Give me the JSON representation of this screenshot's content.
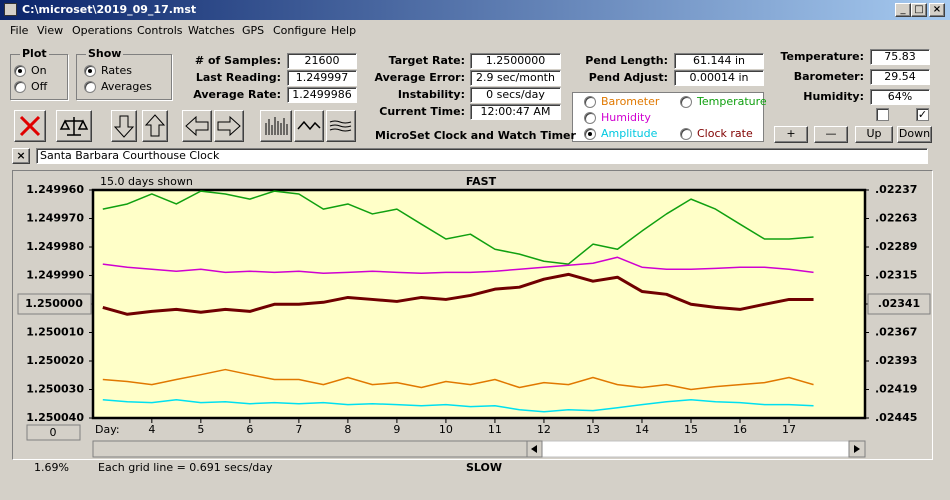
{
  "window": {
    "title": "C:\\microset\\2019_09_17.mst",
    "menu": [
      "File",
      "View",
      "Operations",
      "Controls",
      "Watches",
      "GPS",
      "Configure",
      "Help"
    ]
  },
  "plot_group": {
    "title": "Plot",
    "options": [
      {
        "label": "On",
        "checked": true
      },
      {
        "label": "Off",
        "checked": false
      }
    ]
  },
  "show_group": {
    "title": "Show",
    "options": [
      {
        "label": "Rates",
        "checked": true
      },
      {
        "label": "Averages",
        "checked": false
      }
    ]
  },
  "fields_left": [
    {
      "label": "# of Samples:",
      "value": "21600"
    },
    {
      "label": "Last Reading:",
      "value": "1.249997"
    },
    {
      "label": "Average Rate:",
      "value": "1.2499986"
    }
  ],
  "fields_mid": [
    {
      "label": "Target Rate:",
      "value": "1.2500000"
    },
    {
      "label": "Average Error:",
      "value": "2.9 sec/month"
    },
    {
      "label": "Instability:",
      "value": "0 secs/day"
    },
    {
      "label": "Current Time:",
      "value": "12:00:47 AM"
    }
  ],
  "app_title": "MicroSet Clock and Watch Timer",
  "fields_pend": [
    {
      "label": "Pend Length:",
      "value": "61.144 in"
    },
    {
      "label": "Pend Adjust:",
      "value": "0.00014 in"
    }
  ],
  "plot_options": [
    {
      "label": "Barometer",
      "color": "#e07800",
      "checked": false
    },
    {
      "label": "Temperature",
      "color": "#10a010",
      "checked": false
    },
    {
      "label": "Humidity",
      "color": "#d000d0",
      "checked": false
    },
    {
      "label": "Amplitude",
      "color": "#00c8e0",
      "checked": true
    },
    {
      "label": "Clock rate",
      "color": "#800000",
      "checked": false
    }
  ],
  "fields_env": [
    {
      "label": "Temperature:",
      "value": "75.83"
    },
    {
      "label": "Barometer:",
      "value": "29.54"
    },
    {
      "label": "Humidity:",
      "value": "64%"
    }
  ],
  "checkboxes": [
    false,
    true
  ],
  "buttons": [
    "+",
    "—",
    "Up",
    "Down"
  ],
  "clock_name": "Santa Barbara Courthouse Clock",
  "zero_button": "0",
  "percent": "1.69%",
  "chart_data": {
    "type": "line",
    "days_shown": "15.0 days shown",
    "top_label": "FAST",
    "bottom_label": "SLOW",
    "x_label": "Day:",
    "footer": "Each grid line = 0.691 secs/day",
    "x": [
      3,
      3.5,
      4,
      4.5,
      5,
      5.5,
      6,
      6.5,
      7,
      7.5,
      8,
      8.5,
      9,
      9.5,
      10,
      10.5,
      11,
      11.5,
      12,
      12.5,
      13,
      13.5,
      14,
      14.5,
      15,
      15.5,
      16,
      16.5,
      17,
      17.5
    ],
    "xlim": [
      2.8,
      18.55
    ],
    "xticks": [
      4,
      5,
      6,
      7,
      8,
      9,
      10,
      11,
      12,
      13,
      14,
      15,
      16,
      17
    ],
    "ylim": [
      1.24996,
      1.25004
    ],
    "yticks": [
      {
        "value": 1.24996,
        "label": "1.249960"
      },
      {
        "value": 1.24997,
        "label": "1.249970"
      },
      {
        "value": 1.24998,
        "label": "1.249980"
      },
      {
        "value": 1.24999,
        "label": "1.249990"
      },
      {
        "value": 1.25,
        "label": "1.250000"
      },
      {
        "value": 1.25001,
        "label": "1.250010"
      },
      {
        "value": 1.25002,
        "label": "1.250020"
      },
      {
        "value": 1.25003,
        "label": "1.250030"
      },
      {
        "value": 1.25004,
        "label": "1.250040"
      }
    ],
    "y2lim": [
      0.02237,
      0.02445
    ],
    "y2ticks": [
      {
        "value": 0.02237,
        "label": ".02237"
      },
      {
        "value": 0.02263,
        "label": ".02263"
      },
      {
        "value": 0.02289,
        "label": ".02289"
      },
      {
        "value": 0.02315,
        "label": ".02315"
      },
      {
        "value": 0.02341,
        "label": ".02341"
      },
      {
        "value": 0.02367,
        "label": ".02367"
      },
      {
        "value": 0.02393,
        "label": ".02393"
      },
      {
        "value": 0.02419,
        "label": ".02419"
      },
      {
        "value": 0.02445,
        "label": ".02445"
      }
    ],
    "series": [
      {
        "color": "#10a010",
        "width": 1.5,
        "values": [
          1.2499667,
          1.2499649,
          1.2499614,
          1.2499649,
          1.2499604,
          1.2499614,
          1.2499632,
          1.2499604,
          1.2499614,
          1.2499667,
          1.2499649,
          1.2499684,
          1.2499667,
          1.249972,
          1.2499772,
          1.2499755,
          1.2499808,
          1.2499825,
          1.249985,
          1.249986,
          1.249979,
          1.2499808,
          1.2499744,
          1.2499684,
          1.2499632,
          1.2499667,
          1.249972,
          1.2499772,
          1.2499772,
          1.2499765
        ]
      },
      {
        "color": "#d000d0",
        "width": 1.5,
        "values": [
          1.249986,
          1.2499871,
          1.2499878,
          1.2499885,
          1.2499878,
          1.2499889,
          1.2499885,
          1.2499889,
          1.2499885,
          1.2499892,
          1.2499889,
          1.2499885,
          1.2499889,
          1.2499892,
          1.2499889,
          1.2499889,
          1.2499885,
          1.2499878,
          1.2499871,
          1.2499864,
          1.2499857,
          1.2499836,
          1.2499871,
          1.2499878,
          1.2499878,
          1.2499875,
          1.2499871,
          1.2499871,
          1.2499878,
          1.2499889
        ]
      },
      {
        "color": "#700000",
        "width": 3,
        "values": [
          1.2500012,
          1.2500036,
          1.2500026,
          1.2500019,
          1.2500029,
          1.2500019,
          1.2500026,
          1.2500001,
          1.2500001,
          1.2499994,
          1.2499977,
          1.2499984,
          1.2499991,
          1.2499977,
          1.2499984,
          1.249997,
          1.2499948,
          1.2499941,
          1.2499913,
          1.2499896,
          1.249992,
          1.2499906,
          1.2499956,
          1.2499966,
          1.2500001,
          1.2500012,
          1.2500019,
          1.2500001,
          1.2499984,
          1.2499984
        ]
      },
      {
        "color": "#e07800",
        "width": 1.5,
        "values": [
          1.2500265,
          1.2500272,
          1.2500283,
          1.2500265,
          1.2500248,
          1.250023,
          1.2500248,
          1.2500265,
          1.2500265,
          1.2500283,
          1.2500258,
          1.2500283,
          1.2500276,
          1.2500293,
          1.2500272,
          1.2500283,
          1.2500265,
          1.2500293,
          1.2500276,
          1.2500283,
          1.2500258,
          1.2500283,
          1.2500293,
          1.2500283,
          1.25003,
          1.250029,
          1.2500283,
          1.2500276,
          1.2500258,
          1.2500283
        ]
      },
      {
        "color": "#00e0f0",
        "width": 1.5,
        "values": [
          1.2500336,
          1.2500343,
          1.2500346,
          1.2500336,
          1.2500346,
          1.2500343,
          1.250035,
          1.2500346,
          1.250035,
          1.2500346,
          1.2500353,
          1.250035,
          1.2500353,
          1.2500357,
          1.2500353,
          1.250036,
          1.2500357,
          1.2500371,
          1.2500378,
          1.2500371,
          1.2500374,
          1.2500364,
          1.2500353,
          1.2500343,
          1.2500336,
          1.2500343,
          1.2500346,
          1.2500353,
          1.2500353,
          1.2500357
        ]
      }
    ]
  }
}
